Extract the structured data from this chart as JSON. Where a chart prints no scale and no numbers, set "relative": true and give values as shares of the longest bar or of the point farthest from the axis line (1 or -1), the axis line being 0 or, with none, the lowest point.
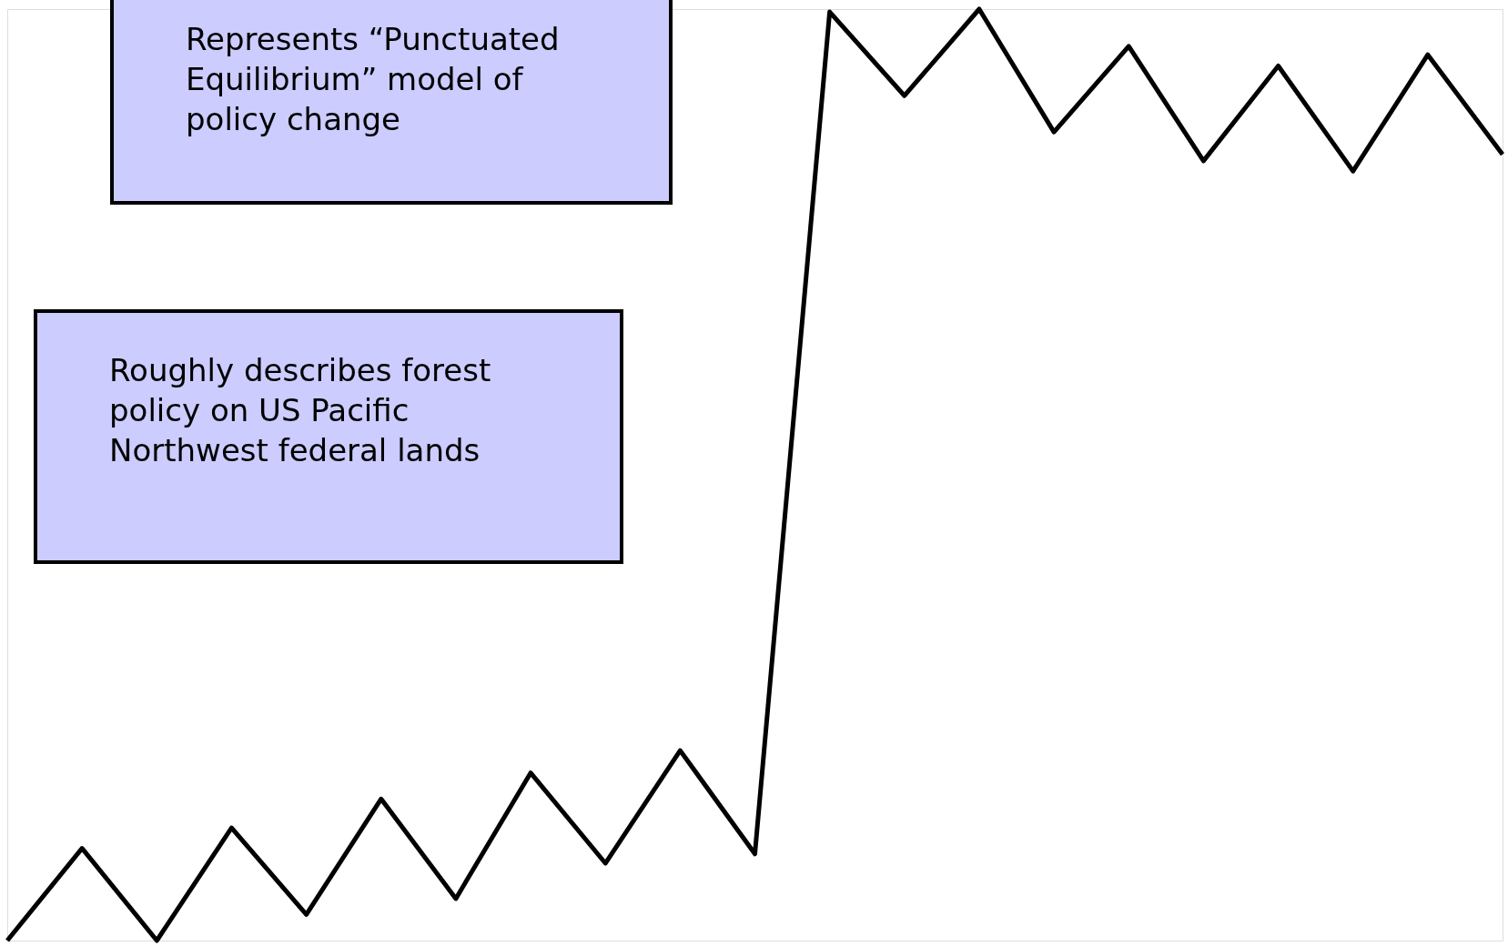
{
  "chart_data": {
    "type": "line",
    "relative": true,
    "categories": [
      null,
      null,
      null,
      null,
      null,
      null,
      null,
      null,
      null,
      null,
      null,
      null,
      null,
      null,
      null,
      null,
      null,
      null,
      null,
      null,
      null
    ],
    "series": [
      {
        "color": "#000000",
        "values": [
          0,
          0.099,
          0,
          0.121,
          0.028,
          0.152,
          0.045,
          0.18,
          0.083,
          0.204,
          0.093,
          0.997,
          0.907,
          1,
          0.868,
          0.96,
          0.837,
          0.939,
          0.826,
          0.951,
          0.844
        ]
      }
    ],
    "annotations": [
      "Represents “Punctuated Equilibrium” model of policy change",
      "Roughly describes forest policy on US Pacific Northwest federal lands"
    ],
    "marker": "none",
    "line_style": "solid"
  }
}
